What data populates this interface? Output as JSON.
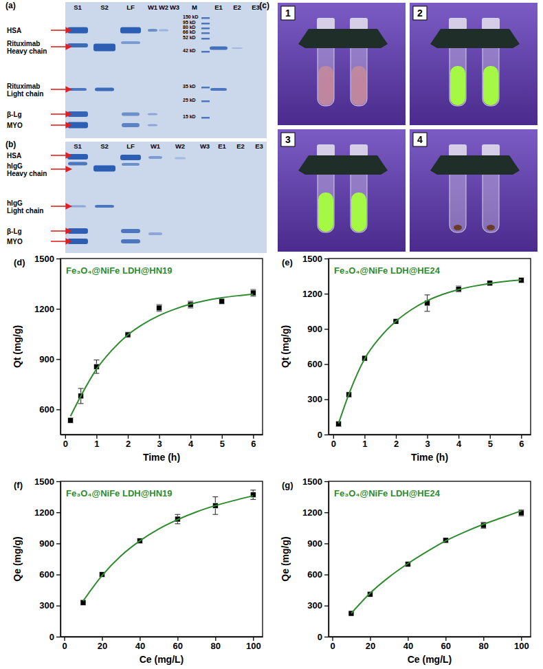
{
  "gels": [
    {
      "panel": "(a)",
      "lanes": [
        "S1",
        "S2",
        "LF",
        "W1",
        "W2",
        "W3",
        "M",
        "E1",
        "E2",
        "E3"
      ],
      "ladder": [
        "150 kD",
        "95 kD",
        "80 kD",
        "66 kD",
        "52 kD",
        "42 kD",
        "35 kD",
        "25 kD",
        "15 kD"
      ],
      "proteins": [
        [
          "HSA"
        ],
        [
          "Rituximab",
          "Heavy chain"
        ],
        [
          "Rituximab",
          "Light chain"
        ],
        [
          "β-Lg"
        ],
        [
          "MYO"
        ]
      ]
    },
    {
      "panel": "(b)",
      "lanes": [
        "S1",
        "S2",
        "LF",
        "W1",
        "W2",
        "W3",
        "E1",
        "E2",
        "E3"
      ],
      "proteins": [
        [
          "HSA"
        ],
        [
          "hIgG",
          "Heavy chain"
        ],
        [
          "hIgG",
          "Light chain"
        ],
        [
          "β-Lg"
        ],
        [
          "MYO"
        ]
      ]
    }
  ],
  "photo": {
    "panel": "(c)",
    "images": [
      "1",
      "2",
      "3",
      "4"
    ]
  },
  "chart_data": [
    {
      "type": "line",
      "title": "Fe₃O₄@NiFe LDH@HN19",
      "annotations": [
        "(d)"
      ],
      "x_label": "Time (h)",
      "y_label": "Qt (mg/g)",
      "xlim": [
        -0.15,
        6.3
      ],
      "xticks": [
        0,
        1,
        2,
        3,
        4,
        5,
        6
      ],
      "ylim": [
        450,
        1500
      ],
      "yticks": [
        600,
        900,
        1200,
        1500
      ],
      "grid": false,
      "series": [
        {
          "type": "scatter",
          "marker": "square",
          "color": "#000000",
          "x": [
            0.17,
            0.5,
            1,
            2,
            3,
            4,
            5,
            6
          ],
          "values": [
            535,
            680,
            855,
            1045,
            1205,
            1225,
            1245,
            1295
          ],
          "errors": [
            15,
            45,
            40,
            15,
            20,
            20,
            15,
            20
          ]
        },
        {
          "type": "line",
          "line_style": "solid",
          "color": "#2e8b2e",
          "x": [
            0.17,
            0.5,
            1,
            1.5,
            2,
            2.5,
            3,
            3.5,
            4,
            4.5,
            5,
            5.5,
            6
          ],
          "values": [
            560,
            680,
            840,
            955,
            1045,
            1110,
            1160,
            1198,
            1228,
            1250,
            1266,
            1278,
            1288
          ]
        }
      ]
    },
    {
      "type": "line",
      "title": "Fe₃O₄@NiFe LDH@HE24",
      "annotations": [
        "(e)"
      ],
      "x_label": "Time (h)",
      "y_label": "Qt (mg/g)",
      "xlim": [
        -0.15,
        6.3
      ],
      "xticks": [
        0,
        1,
        2,
        3,
        4,
        5,
        6
      ],
      "ylim": [
        0,
        1500
      ],
      "yticks": [
        0,
        300,
        600,
        900,
        1200,
        1500
      ],
      "grid": false,
      "series": [
        {
          "type": "scatter",
          "marker": "square",
          "color": "#000000",
          "x": [
            0.17,
            0.5,
            1,
            2,
            3,
            4,
            5,
            6
          ],
          "values": [
            90,
            340,
            650,
            965,
            1120,
            1240,
            1290,
            1315
          ],
          "errors": [
            20,
            20,
            20,
            15,
            70,
            25,
            15,
            20
          ]
        },
        {
          "type": "line",
          "line_style": "solid",
          "color": "#2e8b2e",
          "x": [
            0.17,
            0.5,
            1,
            1.5,
            2,
            2.5,
            3,
            3.5,
            4,
            4.5,
            5,
            5.5,
            6
          ],
          "values": [
            95,
            345,
            645,
            830,
            965,
            1065,
            1140,
            1195,
            1235,
            1265,
            1288,
            1305,
            1318
          ]
        }
      ]
    },
    {
      "type": "line",
      "title": "Fe₃O₄@NiFe LDH@HN19",
      "annotations": [
        "(f)"
      ],
      "x_label": "Ce (mg/L)",
      "y_label": "Qe (mg/g)",
      "xlim": [
        -2,
        105
      ],
      "xticks": [
        0,
        20,
        40,
        60,
        80,
        100
      ],
      "ylim": [
        0,
        1500
      ],
      "yticks": [
        0,
        300,
        600,
        900,
        1200,
        1500
      ],
      "grid": false,
      "series": [
        {
          "type": "scatter",
          "marker": "square",
          "color": "#000000",
          "x": [
            10,
            20,
            40,
            60,
            80,
            100
          ],
          "values": [
            330,
            600,
            925,
            1135,
            1265,
            1370
          ],
          "errors": [
            25,
            15,
            20,
            45,
            85,
            45
          ]
        },
        {
          "type": "line",
          "line_style": "solid",
          "color": "#2e8b2e",
          "x": [
            10,
            20,
            30,
            40,
            50,
            60,
            70,
            80,
            90,
            100
          ],
          "values": [
            345,
            590,
            780,
            925,
            1040,
            1130,
            1205,
            1265,
            1315,
            1360
          ]
        }
      ]
    },
    {
      "type": "line",
      "title": "Fe₃O₄@NiFe LDH@HE24",
      "annotations": [
        "(g)"
      ],
      "x_label": "Ce (mg/L)",
      "y_label": "Qe (mg/g)",
      "xlim": [
        -2,
        105
      ],
      "xticks": [
        0,
        20,
        40,
        60,
        80,
        100
      ],
      "ylim": [
        0,
        1500
      ],
      "yticks": [
        0,
        300,
        600,
        900,
        1200,
        1500
      ],
      "grid": false,
      "series": [
        {
          "type": "scatter",
          "marker": "square",
          "color": "#000000",
          "x": [
            10,
            20,
            40,
            60,
            80,
            100
          ],
          "values": [
            225,
            410,
            700,
            930,
            1075,
            1195
          ],
          "errors": [
            20,
            20,
            15,
            15,
            30,
            30
          ]
        },
        {
          "type": "line",
          "line_style": "solid",
          "color": "#2e8b2e",
          "x": [
            10,
            20,
            30,
            40,
            50,
            60,
            70,
            80,
            90,
            100
          ],
          "values": [
            225,
            420,
            575,
            705,
            820,
            925,
            1010,
            1085,
            1150,
            1215
          ]
        }
      ]
    }
  ]
}
